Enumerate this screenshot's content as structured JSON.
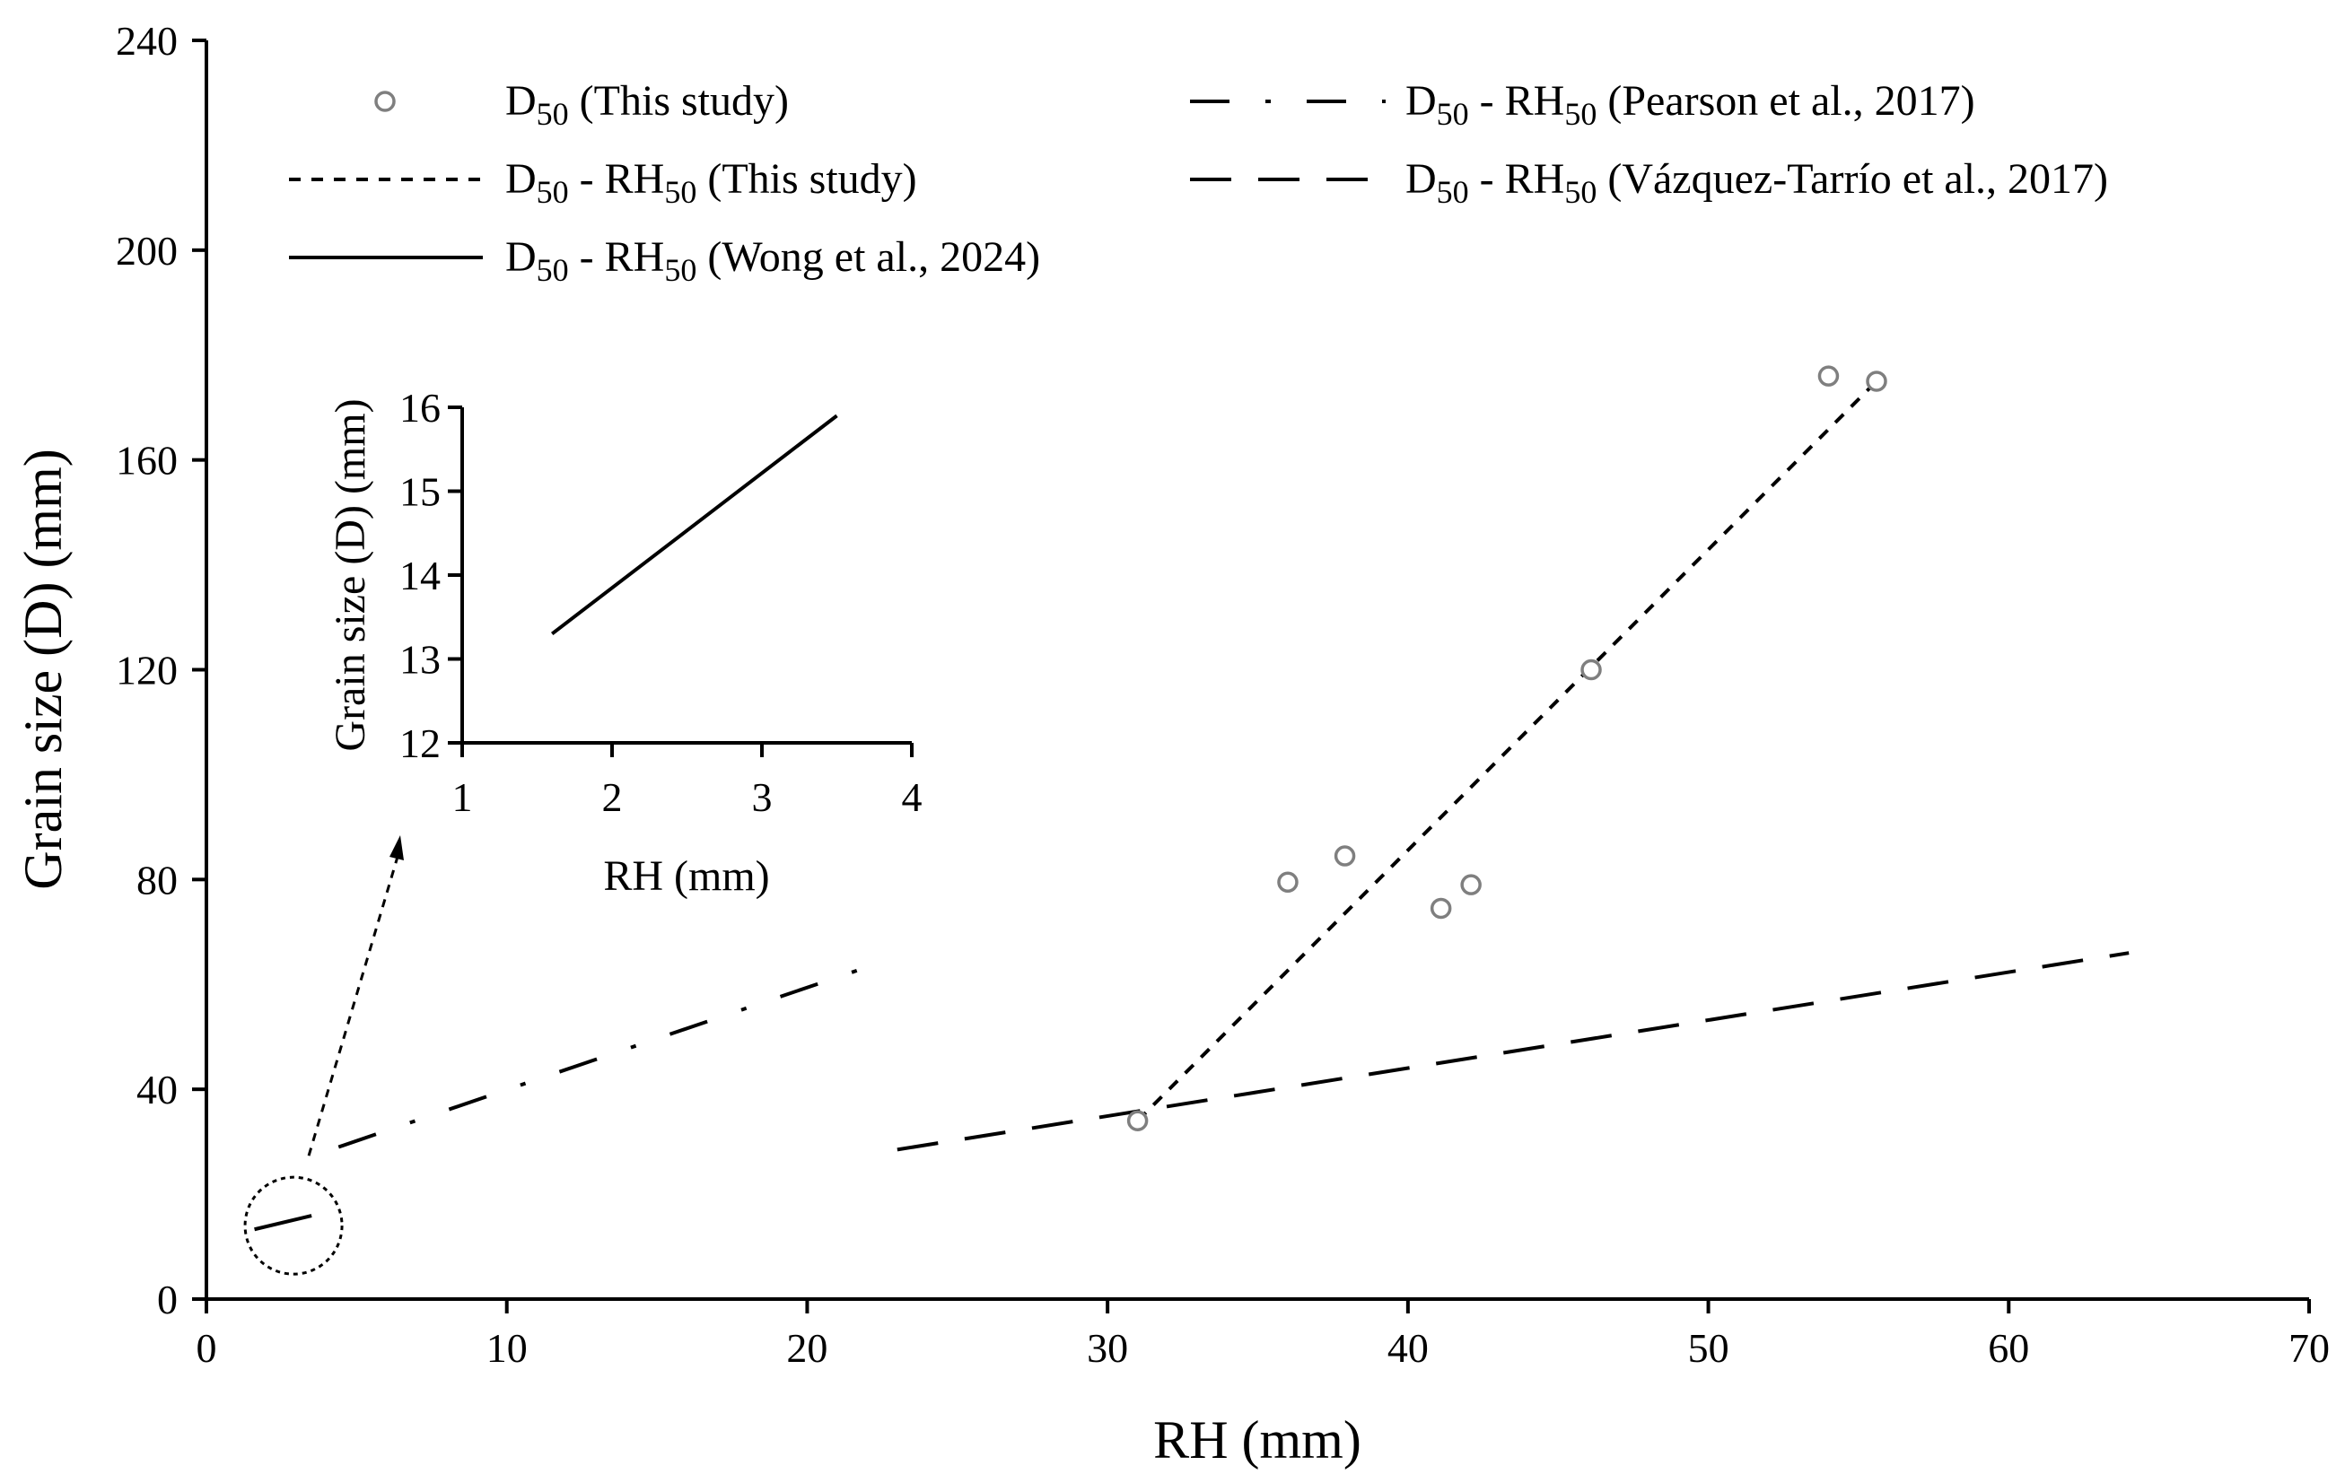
{
  "chart_data": {
    "type": "scatter",
    "title": "",
    "xlabel": "RH (mm)",
    "ylabel": "Grain size (D) (mm)",
    "xlim": [
      0,
      70
    ],
    "ylim": [
      0,
      240
    ],
    "xticks": [
      0,
      10,
      20,
      30,
      40,
      50,
      60,
      70
    ],
    "yticks": [
      0,
      40,
      80,
      120,
      160,
      200,
      240
    ],
    "grid": false,
    "legend_position": "top",
    "series": [
      {
        "name": "D50 (This study)",
        "label_main": "D",
        "label_sub": "50",
        "label_rest": " (This study)",
        "kind": "points",
        "marker": "open-circle",
        "color": "#7f7f7f",
        "x": [
          31.0,
          36.0,
          37.9,
          41.1,
          42.1,
          46.1,
          54.0,
          55.6
        ],
        "y": [
          34,
          79.5,
          84.5,
          74.5,
          79,
          120,
          176,
          175
        ]
      },
      {
        "name": "D50 - RH50 (This study)",
        "label_main": "D",
        "label_sub": "50",
        "label_mid": " - RH",
        "label_sub2": "50",
        "label_rest": " (This study)",
        "kind": "line",
        "dash": "short-dash",
        "color": "#000000",
        "x": [
          31.0,
          55.6
        ],
        "y": [
          34,
          175
        ]
      },
      {
        "name": "D50 - RH50 (Wong et al., 2024)",
        "label_main": "D",
        "label_sub": "50",
        "label_mid": " - RH",
        "label_sub2": "50",
        "label_rest": " (Wong et al., 2024)",
        "kind": "line",
        "dash": "solid",
        "color": "#000000",
        "x": [
          1.6,
          3.5
        ],
        "y": [
          13.3,
          15.9
        ]
      },
      {
        "name": "D50 - RH50 (Pearson et al., 2017)",
        "label_main": "D",
        "label_sub": "50",
        "label_mid": " - RH",
        "label_sub2": "50",
        "label_rest": " (Pearson et al., 2017)",
        "kind": "line",
        "dash": "dash-dot",
        "color": "#000000",
        "x": [
          4.4,
          22.1
        ],
        "y": [
          29,
          63.5
        ]
      },
      {
        "name": "D50 - RH50 (Vázquez-Tarrío et al., 2017)",
        "label_main": "D",
        "label_sub": "50",
        "label_mid": " - RH",
        "label_sub2": "50",
        "label_rest": " (Vázquez-Tarrío et al., 2017)",
        "kind": "line",
        "dash": "long-dash",
        "color": "#000000",
        "x": [
          23.0,
          64.0
        ],
        "y": [
          28.5,
          66
        ]
      }
    ],
    "inset": {
      "xlabel": "RH (mm)",
      "ylabel": "Grain size (D) (mm)",
      "xlim": [
        1,
        4
      ],
      "ylim": [
        12,
        16
      ],
      "xticks": [
        1,
        2,
        3,
        4
      ],
      "yticks": [
        12,
        13,
        14,
        15,
        16
      ],
      "series": "D50 - RH50 (Wong et al., 2024)",
      "zoom_region": {
        "x": 2.9,
        "y": 14
      }
    }
  }
}
